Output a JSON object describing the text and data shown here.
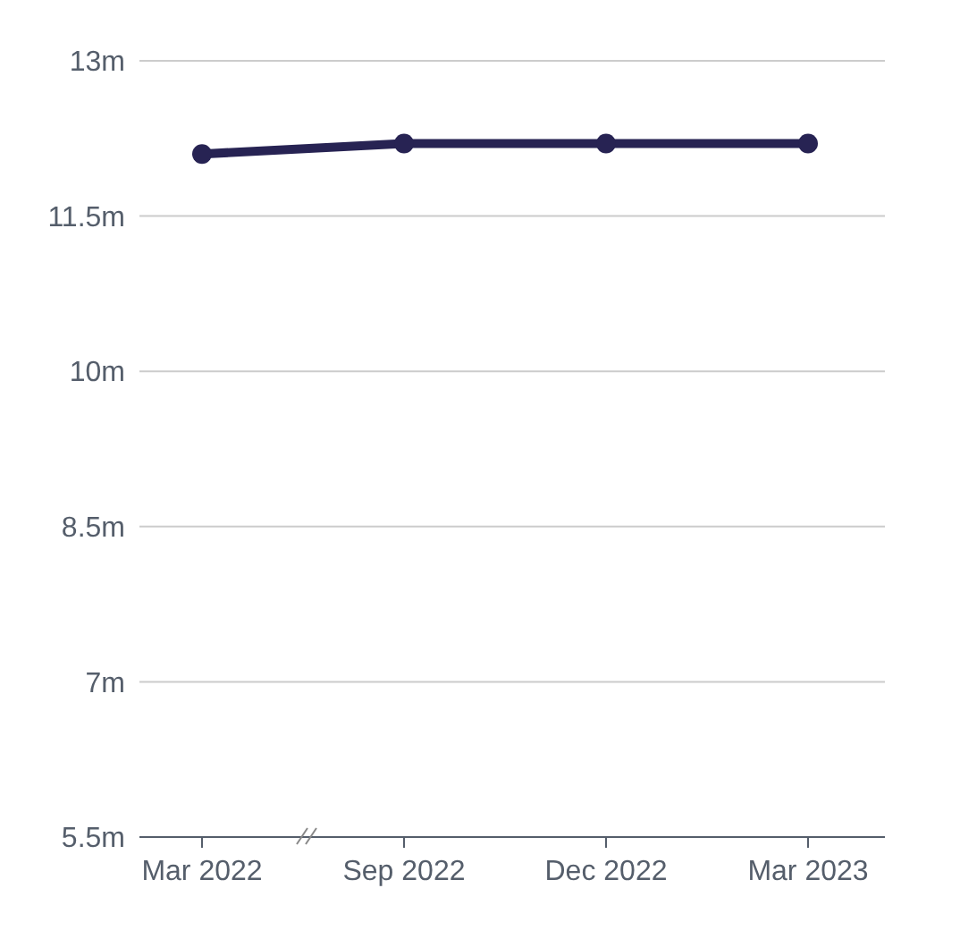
{
  "chart_data": {
    "type": "line",
    "categories": [
      "Mar 2022",
      "Sep 2022",
      "Dec 2022",
      "Mar 2023"
    ],
    "series": [
      {
        "color": "#272353",
        "values": [
          12.1,
          12.2,
          12.2,
          12.2
        ]
      }
    ],
    "ylim": [
      5.5,
      13
    ],
    "yticks": [
      {
        "value": 5.5,
        "label": "5.5m"
      },
      {
        "value": 7,
        "label": "7m"
      },
      {
        "value": 8.5,
        "label": "8.5m"
      },
      {
        "value": 10,
        "label": "10m"
      },
      {
        "value": 11.5,
        "label": "11.5m"
      },
      {
        "value": 13,
        "label": "13m"
      }
    ],
    "grid": "y",
    "marker": "circle"
  }
}
